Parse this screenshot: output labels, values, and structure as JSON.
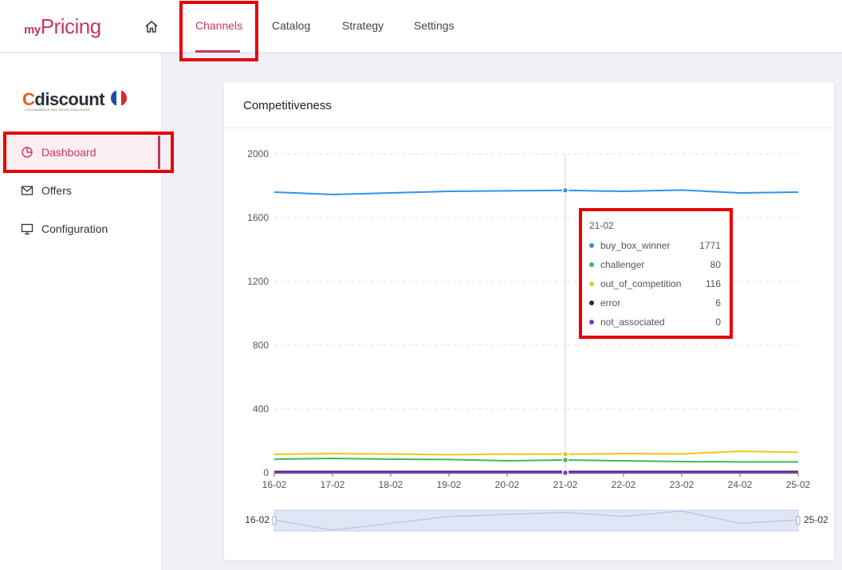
{
  "app": {
    "logo_my": "my",
    "logo_pricing": "Pricing",
    "nav": [
      {
        "label": "Channels",
        "active": true
      },
      {
        "label": "Catalog"
      },
      {
        "label": "Strategy"
      },
      {
        "label": "Settings"
      }
    ],
    "home_icon": "home-icon"
  },
  "sidebar": {
    "brand": "Cdiscount",
    "brand_tagline": "L'ECOMMERCE PAS ENVIE D'AILLEURS",
    "items": [
      {
        "label": "Dashboard",
        "icon": "pie-chart-icon",
        "active": true
      },
      {
        "label": "Offers",
        "icon": "mail-icon"
      },
      {
        "label": "Configuration",
        "icon": "monitor-icon"
      }
    ]
  },
  "card": {
    "title": "Competitiveness"
  },
  "colors": {
    "accent": "#c8365f",
    "buy_box_winner": "#2f93e8",
    "challenger": "#3cb95b",
    "out_of_competition": "#f5c518",
    "error": "#1f2a44",
    "not_associated": "#7b3fc4"
  },
  "chart_data": {
    "type": "line",
    "x": [
      "16-02",
      "17-02",
      "18-02",
      "19-02",
      "20-02",
      "21-02",
      "22-02",
      "23-02",
      "24-02",
      "25-02"
    ],
    "ylim": [
      0,
      2000
    ],
    "yticks": [
      0,
      400,
      800,
      1200,
      1600,
      2000
    ],
    "series": [
      {
        "name": "buy_box_winner",
        "values": [
          1760,
          1745,
          1755,
          1765,
          1768,
          1771,
          1765,
          1773,
          1755,
          1760
        ]
      },
      {
        "name": "challenger",
        "values": [
          85,
          90,
          85,
          83,
          75,
          80,
          75,
          70,
          68,
          68
        ]
      },
      {
        "name": "out_of_competition",
        "values": [
          115,
          120,
          117,
          113,
          117,
          116,
          120,
          118,
          135,
          128
        ]
      },
      {
        "name": "error",
        "values": [
          6,
          6,
          6,
          6,
          6,
          6,
          6,
          6,
          6,
          6
        ]
      },
      {
        "name": "not_associated",
        "values": [
          0,
          0,
          0,
          0,
          0,
          0,
          0,
          0,
          0,
          0
        ]
      }
    ],
    "highlight_index": 5,
    "tooltip": {
      "date": "21-02",
      "rows": [
        {
          "name": "buy_box_winner",
          "value": "1771"
        },
        {
          "name": "challenger",
          "value": "80"
        },
        {
          "name": "out_of_competition",
          "value": "116"
        },
        {
          "name": "error",
          "value": "6"
        },
        {
          "name": "not_associated",
          "value": "0"
        }
      ]
    },
    "zoom": {
      "start": "16-02",
      "end": "25-02"
    }
  }
}
